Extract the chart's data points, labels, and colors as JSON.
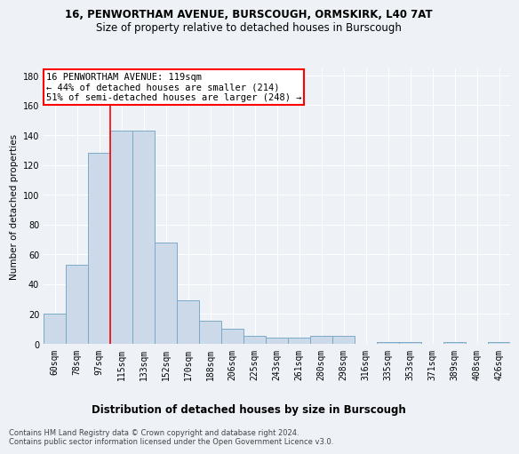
{
  "title1": "16, PENWORTHAM AVENUE, BURSCOUGH, ORMSKIRK, L40 7AT",
  "title2": "Size of property relative to detached houses in Burscough",
  "xlabel": "Distribution of detached houses by size in Burscough",
  "ylabel": "Number of detached properties",
  "categories": [
    "60sqm",
    "78sqm",
    "97sqm",
    "115sqm",
    "133sqm",
    "152sqm",
    "170sqm",
    "188sqm",
    "206sqm",
    "225sqm",
    "243sqm",
    "261sqm",
    "280sqm",
    "298sqm",
    "316sqm",
    "335sqm",
    "353sqm",
    "371sqm",
    "389sqm",
    "408sqm",
    "426sqm"
  ],
  "values": [
    20,
    53,
    128,
    143,
    143,
    68,
    29,
    15,
    10,
    5,
    4,
    4,
    5,
    5,
    0,
    1,
    1,
    0,
    1,
    0,
    1
  ],
  "bar_color": "#ccd9e8",
  "bar_edge_color": "#7aaac8",
  "red_line_index": 3,
  "annotation_text": "16 PENWORTHAM AVENUE: 119sqm\n← 44% of detached houses are smaller (214)\n51% of semi-detached houses are larger (248) →",
  "annotation_box_color": "white",
  "annotation_box_edge_color": "red",
  "vline_color": "red",
  "ylim": [
    0,
    185
  ],
  "yticks": [
    0,
    20,
    40,
    60,
    80,
    100,
    120,
    140,
    160,
    180
  ],
  "footer": "Contains HM Land Registry data © Crown copyright and database right 2024.\nContains public sector information licensed under the Open Government Licence v3.0.",
  "bg_color": "#eef2f7",
  "grid_color": "#ffffff",
  "title1_fontsize": 8.5,
  "title2_fontsize": 8.5,
  "ylabel_fontsize": 7.5,
  "xlabel_fontsize": 8.5,
  "tick_fontsize": 7,
  "footer_fontsize": 6,
  "annotation_fontsize": 7.5
}
